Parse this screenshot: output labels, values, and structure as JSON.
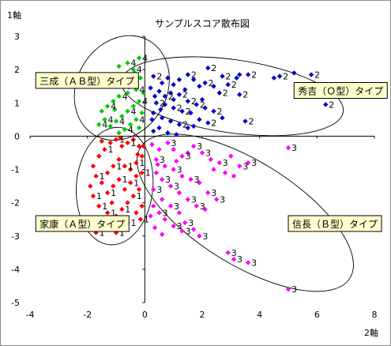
{
  "chart_data": {
    "type": "scatter",
    "title": "サンプルスコア散布図",
    "xlabel": "2軸",
    "ylabel": "1軸",
    "xlim": [
      -4,
      8
    ],
    "ylim": [
      -5,
      3
    ],
    "xticks": [
      -4,
      -2,
      0,
      2,
      4,
      6,
      8
    ],
    "yticks": [
      3,
      2,
      1,
      0,
      -1,
      -2,
      -3,
      -4,
      -5
    ],
    "grid": false,
    "legend": "none",
    "annotations": [
      {
        "text": "三成（ＡＢ型）タイプ",
        "x": -3.8,
        "y": 1.65
      },
      {
        "text": "秀吉（Ｏ型）タイプ",
        "x": 5.2,
        "y": 1.35
      },
      {
        "text": "家康（Ａ型）タイプ",
        "x": -3.8,
        "y": -2.65
      },
      {
        "text": "信長（Ｂ型）タイプ",
        "x": 5.0,
        "y": -2.65
      }
    ],
    "clusters": [
      {
        "label": "2",
        "color": "#0000cc"
      },
      {
        "label": "3",
        "color": "#ff00ff"
      },
      {
        "label": "1",
        "color": "#ff0000"
      },
      {
        "label": "4",
        "color": "#00cc00"
      }
    ],
    "series": [
      {
        "cluster": "2",
        "color": "#0000cc",
        "label": "2",
        "points": [
          [
            6.3,
            0.95
          ],
          [
            5.8,
            1.85
          ],
          [
            5.2,
            1.9
          ],
          [
            4.7,
            1.8
          ],
          [
            4.5,
            1.75
          ],
          [
            3.6,
            1.85
          ],
          [
            3.3,
            1.85
          ],
          [
            3.2,
            1.75
          ],
          [
            2.7,
            1.8
          ],
          [
            2.2,
            2.05
          ],
          [
            2.9,
            1.55
          ],
          [
            3.3,
            1.25
          ],
          [
            2.6,
            1.3
          ],
          [
            2.4,
            1.5
          ],
          [
            2.1,
            1.6
          ],
          [
            1.9,
            1.5
          ],
          [
            1.7,
            1.7
          ],
          [
            1.5,
            1.85
          ],
          [
            1.2,
            1.7
          ],
          [
            1.0,
            1.55
          ],
          [
            0.8,
            1.75
          ],
          [
            0.6,
            1.6
          ],
          [
            0.3,
            1.8
          ],
          [
            0.2,
            1.45
          ],
          [
            0.5,
            1.35
          ],
          [
            0.7,
            1.2
          ],
          [
            0.9,
            1.3
          ],
          [
            1.2,
            1.25
          ],
          [
            1.5,
            1.05
          ],
          [
            1.8,
            0.95
          ],
          [
            2.1,
            0.85
          ],
          [
            2.4,
            0.75
          ],
          [
            2.7,
            0.55
          ],
          [
            3.5,
            0.45
          ],
          [
            2.2,
            0.4
          ],
          [
            1.9,
            0.5
          ],
          [
            1.6,
            0.7
          ],
          [
            1.3,
            0.75
          ],
          [
            1.0,
            0.85
          ],
          [
            0.7,
            0.95
          ],
          [
            0.4,
            1.0
          ],
          [
            0.3,
            0.7
          ],
          [
            0.6,
            0.55
          ],
          [
            0.9,
            0.45
          ],
          [
            1.2,
            0.35
          ],
          [
            1.5,
            0.25
          ],
          [
            0.5,
            0.25
          ],
          [
            0.3,
            0.15
          ],
          [
            0.8,
            0.1
          ],
          [
            1.1,
            0.05
          ],
          [
            0.25,
            0.5
          ],
          [
            0.35,
            1.2
          ],
          [
            0.55,
            0.8
          ],
          [
            1.0,
            1.1
          ],
          [
            1.4,
            1.4
          ],
          [
            2.0,
            1.1
          ],
          [
            1.7,
            0.3
          ]
        ],
        "labeled": [
          [
            6.3,
            0.95
          ],
          [
            5.8,
            1.85
          ],
          [
            4.7,
            1.8
          ],
          [
            3.6,
            1.85
          ],
          [
            2.7,
            1.8
          ],
          [
            2.2,
            2.05
          ],
          [
            3.3,
            1.25
          ],
          [
            2.9,
            1.55
          ],
          [
            2.6,
            1.3
          ],
          [
            2.1,
            1.6
          ],
          [
            1.5,
            1.85
          ],
          [
            1.2,
            1.25
          ],
          [
            1.5,
            1.05
          ],
          [
            1.8,
            0.95
          ],
          [
            2.4,
            0.75
          ],
          [
            2.2,
            0.4
          ],
          [
            3.5,
            0.45
          ],
          [
            1.3,
            0.75
          ],
          [
            1.0,
            0.85
          ],
          [
            0.7,
            1.2
          ],
          [
            0.4,
            1.0
          ],
          [
            0.3,
            1.8
          ],
          [
            1.2,
            0.35
          ]
        ]
      },
      {
        "cluster": "3",
        "color": "#ff00ff",
        "label": "3",
        "points": [
          [
            5.0,
            -4.6
          ],
          [
            3.6,
            -3.8
          ],
          [
            3.1,
            -3.7
          ],
          [
            2.9,
            -3.5
          ],
          [
            5.0,
            -0.35
          ],
          [
            3.6,
            -0.8
          ],
          [
            3.3,
            -0.9
          ],
          [
            3.0,
            -0.6
          ],
          [
            2.6,
            -0.8
          ],
          [
            2.3,
            -0.7
          ],
          [
            2.0,
            -0.5
          ],
          [
            1.7,
            -0.3
          ],
          [
            1.5,
            -0.5
          ],
          [
            1.3,
            -0.6
          ],
          [
            1.0,
            -0.4
          ],
          [
            0.8,
            -0.2
          ],
          [
            0.5,
            -0.4
          ],
          [
            0.4,
            -0.7
          ],
          [
            0.7,
            -0.9
          ],
          [
            1.0,
            -1.0
          ],
          [
            1.3,
            -1.2
          ],
          [
            1.6,
            -1.3
          ],
          [
            1.9,
            -1.4
          ],
          [
            2.2,
            -1.7
          ],
          [
            2.5,
            -1.9
          ],
          [
            2.1,
            -2.2
          ],
          [
            1.8,
            -2.1
          ],
          [
            1.5,
            -1.9
          ],
          [
            1.2,
            -1.7
          ],
          [
            0.9,
            -1.5
          ],
          [
            0.6,
            -1.3
          ],
          [
            0.4,
            -1.1
          ],
          [
            0.3,
            -1.6
          ],
          [
            0.6,
            -1.9
          ],
          [
            0.9,
            -2.1
          ],
          [
            1.2,
            -2.3
          ],
          [
            1.4,
            -2.6
          ],
          [
            1.7,
            -2.8
          ],
          [
            1.9,
            -3.0
          ],
          [
            1.3,
            -2.85
          ],
          [
            1.0,
            -2.7
          ],
          [
            0.7,
            -2.5
          ],
          [
            0.5,
            -2.3
          ],
          [
            0.3,
            -2.1
          ],
          [
            0.2,
            -2.4
          ],
          [
            0.35,
            -2.75
          ],
          [
            0.6,
            -2.95
          ],
          [
            2.8,
            -1.1
          ],
          [
            3.1,
            -1.2
          ],
          [
            2.4,
            -1.0
          ],
          [
            1.1,
            -0.75
          ],
          [
            0.25,
            -0.25
          ],
          [
            0.45,
            -0.85
          ]
        ],
        "labeled": [
          [
            5.0,
            -4.6
          ],
          [
            3.6,
            -3.8
          ],
          [
            3.1,
            -3.7
          ],
          [
            2.9,
            -3.5
          ],
          [
            5.0,
            -0.35
          ],
          [
            3.6,
            -0.8
          ],
          [
            3.3,
            -0.9
          ],
          [
            2.6,
            -0.8
          ],
          [
            2.0,
            -0.5
          ],
          [
            1.7,
            -0.3
          ],
          [
            1.3,
            -0.6
          ],
          [
            0.8,
            -0.2
          ],
          [
            0.4,
            -0.7
          ],
          [
            1.0,
            -1.0
          ],
          [
            1.6,
            -1.3
          ],
          [
            2.2,
            -1.7
          ],
          [
            1.8,
            -2.1
          ],
          [
            1.5,
            -1.9
          ],
          [
            0.9,
            -1.5
          ],
          [
            0.6,
            -1.3
          ],
          [
            0.3,
            -1.6
          ],
          [
            0.9,
            -2.1
          ],
          [
            1.4,
            -2.6
          ],
          [
            1.9,
            -3.0
          ],
          [
            1.3,
            -2.85
          ],
          [
            1.0,
            -2.7
          ],
          [
            0.5,
            -2.3
          ],
          [
            2.5,
            -1.9
          ]
        ]
      },
      {
        "cluster": "1",
        "color": "#ff0000",
        "label": "1",
        "points": [
          [
            -1.7,
            -2.9
          ],
          [
            -1.5,
            -2.6
          ],
          [
            -1.3,
            -2.3
          ],
          [
            -1.6,
            -2.1
          ],
          [
            -1.8,
            -1.8
          ],
          [
            -1.9,
            -1.5
          ],
          [
            -1.7,
            -1.2
          ],
          [
            -1.8,
            -0.9
          ],
          [
            -1.6,
            -0.6
          ],
          [
            -1.4,
            -0.4
          ],
          [
            -1.2,
            -0.2
          ],
          [
            -1.0,
            -0.1
          ],
          [
            -0.8,
            -0.3
          ],
          [
            -0.6,
            -0.2
          ],
          [
            -0.4,
            -0.1
          ],
          [
            -0.2,
            -0.3
          ],
          [
            -0.1,
            -0.6
          ],
          [
            -0.3,
            -0.8
          ],
          [
            -0.5,
            -1.0
          ],
          [
            -0.7,
            -0.9
          ],
          [
            -0.9,
            -0.7
          ],
          [
            -1.1,
            -0.9
          ],
          [
            -1.3,
            -1.1
          ],
          [
            -1.5,
            -1.4
          ],
          [
            -1.3,
            -1.7
          ],
          [
            -1.1,
            -1.5
          ],
          [
            -0.9,
            -1.3
          ],
          [
            -0.7,
            -1.6
          ],
          [
            -0.5,
            -1.4
          ],
          [
            -0.3,
            -1.2
          ],
          [
            -0.1,
            -1.1
          ],
          [
            -0.2,
            -1.6
          ],
          [
            -0.4,
            -1.8
          ],
          [
            -0.6,
            -2.0
          ],
          [
            -0.8,
            -2.2
          ],
          [
            -1.0,
            -2.4
          ],
          [
            -1.2,
            -2.6
          ],
          [
            -1.4,
            -2.8
          ],
          [
            -1.0,
            -2.9
          ],
          [
            -0.6,
            -2.6
          ],
          [
            -0.3,
            -2.3
          ],
          [
            -0.1,
            -2.1
          ],
          [
            -0.15,
            -2.5
          ],
          [
            -0.05,
            -0.3
          ],
          [
            -0.25,
            -0.55
          ],
          [
            -1.5,
            -0.15
          ],
          [
            -0.85,
            -0.05
          ],
          [
            -1.15,
            -2.0
          ]
        ],
        "labeled": [
          [
            -1.7,
            -2.9
          ],
          [
            -1.5,
            -2.6
          ],
          [
            -1.3,
            -2.3
          ],
          [
            -1.6,
            -2.1
          ],
          [
            -1.8,
            -1.8
          ],
          [
            -1.7,
            -1.2
          ],
          [
            -1.4,
            -0.4
          ],
          [
            -1.0,
            -0.1
          ],
          [
            -0.6,
            -0.2
          ],
          [
            -0.3,
            -0.8
          ],
          [
            -0.7,
            -0.9
          ],
          [
            -1.1,
            -0.9
          ],
          [
            -1.3,
            -1.7
          ],
          [
            -0.9,
            -1.3
          ],
          [
            -0.5,
            -1.4
          ],
          [
            -0.1,
            -1.1
          ],
          [
            -0.4,
            -1.8
          ],
          [
            -0.8,
            -2.2
          ],
          [
            -1.2,
            -2.6
          ],
          [
            -1.0,
            -2.9
          ],
          [
            -0.6,
            -2.6
          ],
          [
            -0.15,
            -2.5
          ]
        ]
      },
      {
        "cluster": "4",
        "color": "#00cc00",
        "label": "4",
        "points": [
          [
            -0.2,
            2.35
          ],
          [
            -0.6,
            2.2
          ],
          [
            -0.9,
            2.1
          ],
          [
            -0.4,
            2.0
          ],
          [
            -0.7,
            1.85
          ],
          [
            -1.0,
            1.7
          ],
          [
            -1.2,
            1.55
          ],
          [
            -0.8,
            1.5
          ],
          [
            -0.5,
            1.6
          ],
          [
            -0.3,
            1.4
          ],
          [
            -0.6,
            1.3
          ],
          [
            -0.9,
            1.2
          ],
          [
            -1.1,
            1.05
          ],
          [
            -1.3,
            0.9
          ],
          [
            -1.5,
            0.75
          ],
          [
            -1.4,
            0.5
          ],
          [
            -1.6,
            0.35
          ],
          [
            -1.2,
            0.3
          ],
          [
            -1.0,
            0.45
          ],
          [
            -0.8,
            0.6
          ],
          [
            -0.6,
            0.75
          ],
          [
            -0.4,
            0.9
          ],
          [
            -0.2,
            1.05
          ],
          [
            -0.1,
            0.7
          ],
          [
            -0.3,
            0.5
          ],
          [
            -0.5,
            0.35
          ],
          [
            -0.7,
            0.2
          ],
          [
            -0.9,
            0.1
          ],
          [
            -0.2,
            0.25
          ],
          [
            -0.05,
            1.3
          ],
          [
            -0.15,
            1.75
          ],
          [
            -1.05,
            0.8
          ],
          [
            -0.35,
            1.9
          ]
        ],
        "labeled": [
          [
            -0.2,
            2.35
          ],
          [
            -0.6,
            2.2
          ],
          [
            -0.4,
            2.0
          ],
          [
            -1.0,
            1.7
          ],
          [
            -0.8,
            1.5
          ],
          [
            -0.3,
            1.4
          ],
          [
            -0.9,
            1.2
          ],
          [
            -1.3,
            0.9
          ],
          [
            -1.4,
            0.5
          ],
          [
            -1.6,
            0.35
          ],
          [
            -1.0,
            0.45
          ],
          [
            -0.6,
            0.75
          ],
          [
            -0.2,
            1.05
          ],
          [
            -0.3,
            0.5
          ],
          [
            -0.7,
            0.2
          ]
        ]
      }
    ],
    "ellipses": [
      {
        "cx": -0.8,
        "cy": 1.45,
        "rx": 1.9,
        "ry": 1.35,
        "angle": 60
      },
      {
        "cx": 3.05,
        "cy": 1.2,
        "rx": 3.9,
        "ry": 1.1,
        "angle": -8
      },
      {
        "cx": -1.05,
        "cy": -1.5,
        "rx": 2.05,
        "ry": 1.15,
        "angle": 85
      },
      {
        "cx": 3.5,
        "cy": -2.3,
        "rx": 4.3,
        "ry": 1.55,
        "angle": -32
      }
    ]
  }
}
